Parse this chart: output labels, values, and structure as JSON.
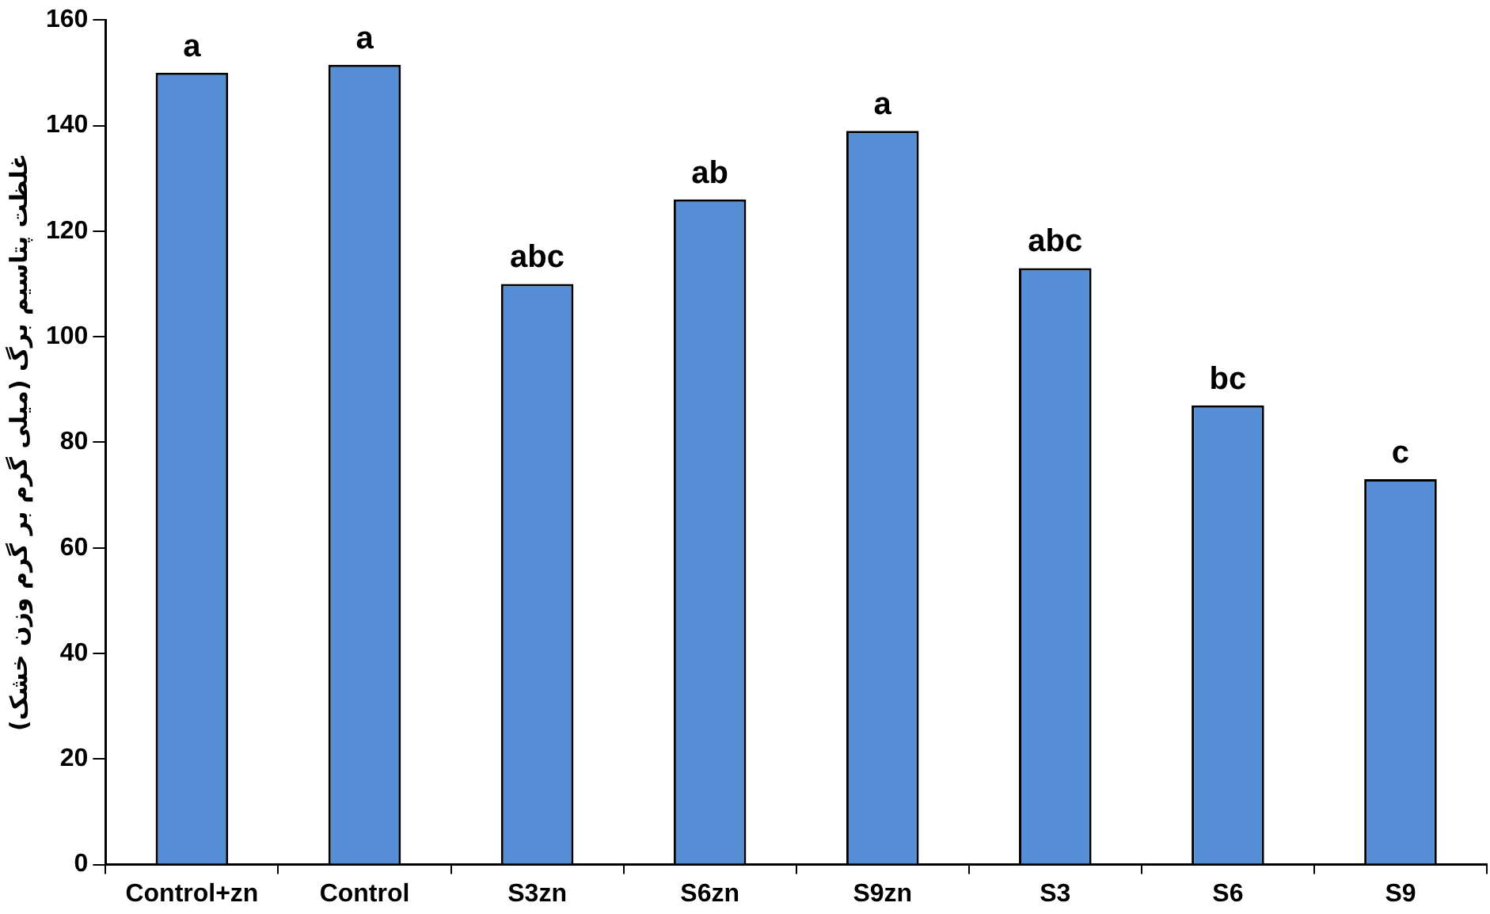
{
  "chart_data": {
    "type": "bar",
    "ylabel": "غلظت پتاسیم برگ (میلی گرم بر گرم وزن خشک)",
    "categories": [
      "Control+zn",
      "Control",
      "S3zn",
      "S6zn",
      "S9zn",
      "S3",
      "S6",
      "S9"
    ],
    "values": [
      150,
      151.5,
      110,
      126,
      139,
      113,
      87,
      73
    ],
    "color": "#558ed5",
    "ylim": [
      0,
      160
    ],
    "yticks": [
      0,
      20,
      40,
      60,
      80,
      100,
      120,
      140,
      160
    ],
    "grid": false,
    "legend": false,
    "annotations": [
      {
        "text": "a",
        "x": "Control+zn",
        "y": 150
      },
      {
        "text": "a",
        "x": "Control",
        "y": 151.5
      },
      {
        "text": "abc",
        "x": "S3zn",
        "y": 110
      },
      {
        "text": "ab",
        "x": "S6zn",
        "y": 126
      },
      {
        "text": "a",
        "x": "S9zn",
        "y": 139
      },
      {
        "text": "abc",
        "x": "S3",
        "y": 113
      },
      {
        "text": "bc",
        "x": "S6",
        "y": 87
      },
      {
        "text": "c",
        "x": "S9",
        "y": 73
      }
    ]
  }
}
